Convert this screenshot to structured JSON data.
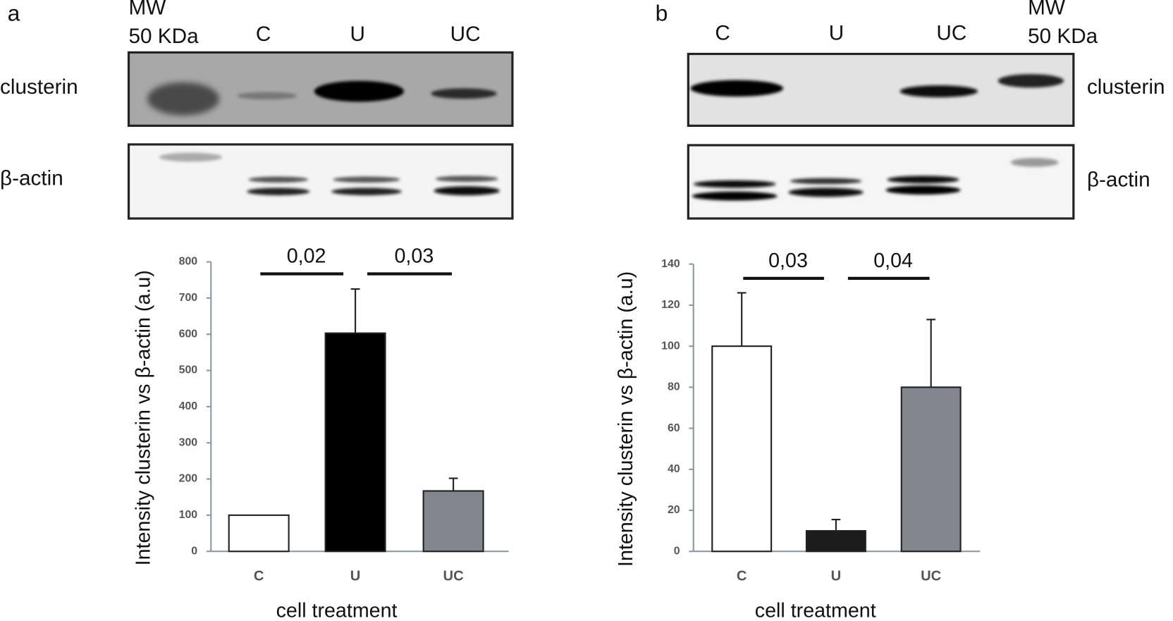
{
  "panels": [
    {
      "label": "a",
      "mw": "MW",
      "mw_size": "50 KDa",
      "lanes": [
        "C",
        "U",
        "UC"
      ],
      "rows": [
        "clusterin",
        "β-actin"
      ]
    },
    {
      "label": "b",
      "mw": "MW",
      "mw_size": "50 KDa",
      "lanes": [
        "C",
        "U",
        "UC"
      ],
      "rows": [
        "clusterin",
        "β-actin"
      ]
    }
  ],
  "chart_data": [
    {
      "type": "bar",
      "categories": [
        "C",
        "U",
        "UC"
      ],
      "values": [
        100,
        603,
        167
      ],
      "errors": [
        null,
        122,
        35
      ],
      "colors": [
        "#ffffff",
        "#000000",
        "#81878c"
      ],
      "ylim": [
        0,
        800
      ],
      "yticks": [
        0,
        100,
        200,
        300,
        400,
        500,
        600,
        700,
        800
      ],
      "y_label": "Intensity clusterin vs β-actin (a.u)",
      "x_label": "cell treatment",
      "annotations": [
        "0,02",
        "0,03"
      ]
    },
    {
      "type": "bar",
      "categories": [
        "C",
        "U",
        "UC"
      ],
      "values": [
        100,
        10,
        80
      ],
      "errors": [
        26,
        5.5,
        33
      ],
      "colors": [
        "#ffffff",
        "#1c1c1c",
        "#81878c"
      ],
      "ylim": [
        0,
        140
      ],
      "yticks": [
        0,
        20,
        40,
        60,
        80,
        100,
        120,
        140
      ],
      "y_label": "Intensity clusterin vs β-actin (a.u)",
      "x_label": "cell treatment",
      "annotations": [
        "0,03",
        "0,04"
      ]
    }
  ]
}
